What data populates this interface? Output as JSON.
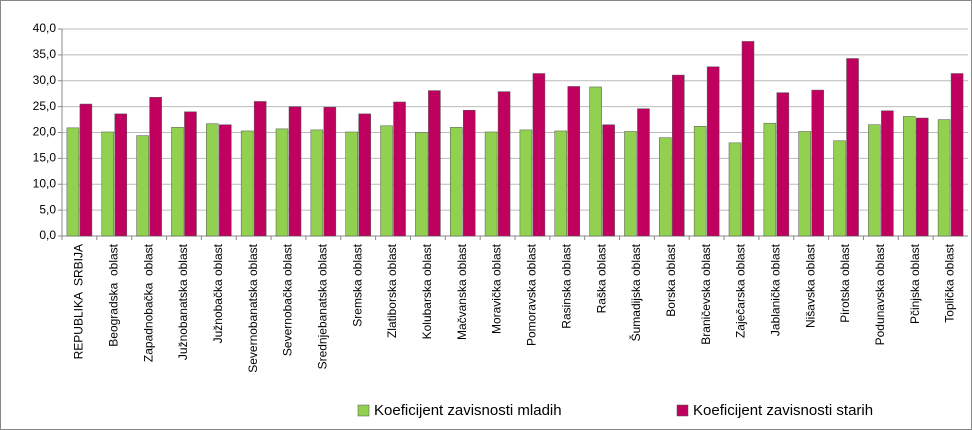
{
  "chart_data": {
    "type": "bar",
    "categories": [
      "REPUBLIKA  SRBIJA",
      "Beogradska  oblast",
      "Zapadnobačka  oblast",
      "Južnobanatska oblast",
      "Južnobačka oblast",
      "Severnobanatska oblast",
      "Severnobačka oblast",
      "Srednjebanatska oblast",
      "Sremska oblast",
      "Zlatiborska oblast",
      "Kolubarska oblast",
      "Mačvanska oblast",
      "Moravička oblast",
      "Pomoravska oblast",
      "Rasinska oblast",
      "Raška oblast",
      "Šumadijska oblast",
      "Borska oblast",
      "Braničevska oblast",
      "Zaječarska oblast",
      "Jablanička oblast",
      "Nišavska oblast",
      "Pirotska oblast",
      "Podunavska oblast",
      "Pčinjska oblast",
      "Toplička oblast"
    ],
    "series": [
      {
        "name": "Koeficijent zavisnosti mladih",
        "color": "#92d050",
        "values": [
          20.9,
          20.1,
          19.4,
          21.0,
          21.7,
          20.3,
          20.7,
          20.5,
          20.1,
          21.3,
          20.0,
          21.0,
          20.1,
          20.5,
          20.3,
          28.8,
          20.2,
          19.0,
          21.2,
          18.0,
          21.8,
          20.2,
          18.4,
          21.5,
          23.1,
          22.5
        ]
      },
      {
        "name": "Koeficijent zavisnosti starih",
        "color": "#c0005e",
        "values": [
          25.5,
          23.6,
          26.8,
          24.0,
          21.5,
          26.0,
          25.0,
          24.9,
          23.6,
          25.9,
          28.1,
          24.3,
          27.9,
          31.4,
          28.9,
          21.5,
          24.6,
          31.1,
          32.7,
          37.6,
          27.7,
          28.2,
          34.3,
          24.2,
          22.8,
          31.4
        ]
      }
    ],
    "ylim": [
      0,
      40
    ],
    "yticks": [
      {
        "value": 0,
        "label": "0,0"
      },
      {
        "value": 5,
        "label": "5,0"
      },
      {
        "value": 10,
        "label": "10,0"
      },
      {
        "value": 15,
        "label": "15,0"
      },
      {
        "value": 20,
        "label": "20,0"
      },
      {
        "value": 25,
        "label": "25,0"
      },
      {
        "value": 30,
        "label": "30,0"
      },
      {
        "value": 35,
        "label": "35,0"
      },
      {
        "value": 40,
        "label": "40,0"
      }
    ],
    "grid": true
  }
}
